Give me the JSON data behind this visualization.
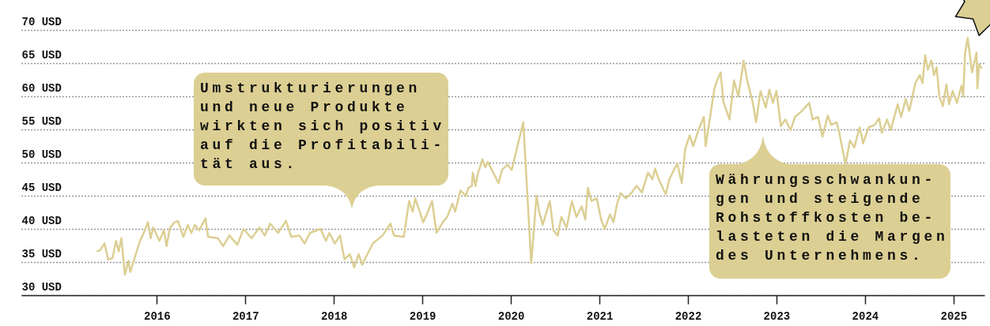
{
  "chart_data": {
    "type": "line",
    "x": [
      2015.32,
      2015.36,
      2015.41,
      2015.45,
      2015.5,
      2015.54,
      2015.57,
      2015.6,
      2015.64,
      2015.68,
      2015.7,
      2015.81,
      2015.84,
      2015.9,
      2015.93,
      2015.96,
      2016.03,
      2016.08,
      2016.11,
      2016.15,
      2016.2,
      2016.24,
      2016.3,
      2016.35,
      2016.39,
      2016.43,
      2016.48,
      2016.55,
      2016.58,
      2016.69,
      2016.75,
      2016.82,
      2016.91,
      2016.98,
      2017.07,
      2017.16,
      2017.22,
      2017.28,
      2017.37,
      2017.46,
      2017.52,
      2017.61,
      2017.67,
      2017.73,
      2017.85,
      2017.91,
      2017.95,
      2018.01,
      2018.07,
      2018.12,
      2018.18,
      2018.23,
      2018.28,
      2018.32,
      2018.44,
      2018.55,
      2018.64,
      2018.68,
      2018.79,
      2018.85,
      2018.89,
      2018.92,
      2019.01,
      2019.05,
      2019.11,
      2019.16,
      2019.23,
      2019.28,
      2019.34,
      2019.37,
      2019.43,
      2019.49,
      2019.52,
      2019.56,
      2019.57,
      2019.6,
      2019.63,
      2019.68,
      2019.71,
      2019.74,
      2019.8,
      2019.86,
      2019.9,
      2019.96,
      2020.01,
      2020.14,
      2020.23,
      2020.29,
      2020.32,
      2020.36,
      2020.44,
      2020.48,
      2020.53,
      2020.57,
      2020.63,
      2020.69,
      2020.74,
      2020.8,
      2020.84,
      2020.87,
      2020.91,
      2020.97,
      2021.02,
      2021.06,
      2021.12,
      2021.16,
      2021.2,
      2021.24,
      2021.3,
      2021.36,
      2021.42,
      2021.48,
      2021.55,
      2021.6,
      2021.63,
      2021.67,
      2021.75,
      2021.79,
      2021.88,
      2021.93,
      2021.97,
      2022.02,
      2022.06,
      2022.13,
      2022.18,
      2022.2,
      2022.3,
      2022.33,
      2022.37,
      2022.4,
      2022.47,
      2022.52,
      2022.57,
      2022.63,
      2022.67,
      2022.73,
      2022.77,
      2022.82,
      2022.88,
      2022.92,
      2022.96,
      2023.0,
      2023.05,
      2023.1,
      2023.16,
      2023.21,
      2023.28,
      2023.37,
      2023.41,
      2023.47,
      2023.52,
      2023.58,
      2023.62,
      2023.68,
      2023.71,
      2023.78,
      2023.83,
      2023.88,
      2023.94,
      2023.98,
      2024.04,
      2024.11,
      2024.16,
      2024.19,
      2024.25,
      2024.29,
      2024.37,
      2024.41,
      2024.46,
      2024.5,
      2024.57,
      2024.62,
      2024.65,
      2024.68,
      2024.71,
      2024.75,
      2024.78,
      2024.81,
      2024.84,
      2024.88,
      2024.92,
      2024.95,
      2024.99,
      2025.04,
      2025.09,
      2025.11,
      2025.13,
      2025.16,
      2025.21,
      2025.26,
      2025.27,
      2025.29,
      2025.32
    ],
    "series": [
      {
        "color": "#dccf93",
        "values": [
          36.6,
          36.8,
          37.8,
          35.4,
          35.6,
          38.2,
          36.6,
          38.6,
          33.1,
          35.2,
          33.5,
          38.2,
          39.0,
          41.0,
          38.6,
          40.2,
          38.2,
          39.8,
          37.4,
          40.2,
          41.0,
          41.2,
          38.8,
          40.6,
          39.4,
          40.6,
          39.8,
          41.6,
          38.8,
          38.6,
          37.4,
          39.0,
          37.6,
          40.0,
          38.6,
          40.2,
          39.0,
          40.8,
          39.4,
          41.2,
          38.8,
          39.0,
          37.8,
          39.4,
          40.0,
          38.2,
          39.4,
          37.8,
          39.0,
          35.4,
          36.2,
          34.2,
          36.2,
          34.6,
          37.8,
          39.0,
          40.8,
          39.0,
          38.8,
          44.2,
          42.6,
          44.6,
          41.0,
          42.2,
          44.2,
          39.4,
          41.0,
          41.8,
          43.8,
          42.6,
          45.8,
          45.0,
          46.2,
          46.5,
          48.5,
          46.5,
          48.5,
          50.5,
          49.3,
          50.1,
          48.5,
          46.9,
          48.9,
          49.7,
          48.9,
          56.1,
          34.8,
          45.0,
          42.6,
          40.6,
          44.2,
          39.8,
          39.0,
          41.8,
          40.2,
          44.2,
          41.8,
          43.4,
          41.4,
          46.2,
          44.2,
          44.6,
          41.4,
          40.0,
          42.2,
          41.0,
          43.8,
          45.4,
          44.6,
          45.4,
          46.5,
          45.5,
          48.5,
          47.5,
          49.1,
          47.5,
          45.2,
          47.5,
          49.9,
          46.9,
          52.1,
          54.1,
          52.5,
          55.3,
          56.9,
          52.5,
          61.2,
          62.4,
          63.6,
          59.2,
          56.5,
          62.4,
          60.0,
          65.4,
          62.4,
          59.2,
          56.1,
          60.8,
          58.3,
          61.0,
          59.0,
          60.8,
          55.5,
          56.5,
          54.9,
          56.9,
          57.7,
          59.0,
          56.5,
          56.9,
          53.9,
          57.1,
          55.7,
          56.1,
          54.5,
          49.7,
          53.3,
          52.3,
          55.3,
          52.9,
          55.3,
          55.7,
          56.7,
          54.5,
          56.5,
          54.9,
          58.8,
          56.9,
          59.6,
          57.8,
          62.0,
          63.2,
          62.0,
          66.2,
          64.0,
          65.4,
          63.2,
          64.4,
          60.0,
          58.5,
          61.8,
          58.8,
          60.8,
          59.0,
          61.6,
          60.0,
          66.4,
          68.8,
          63.6,
          66.6,
          61.2,
          64.8,
          64.2
        ]
      }
    ],
    "xlim": [
      2014.47,
      2025.35
    ],
    "xticks": [
      2016,
      2017,
      2018,
      2019,
      2020,
      2021,
      2022,
      2023,
      2024,
      2025
    ],
    "ylim": [
      30,
      70
    ],
    "yticks": [
      {
        "value": 30,
        "label": "30 USD"
      },
      {
        "value": 35,
        "label": "35 USD"
      },
      {
        "value": 40,
        "label": "40 USD"
      },
      {
        "value": 45,
        "label": "45 USD"
      },
      {
        "value": 50,
        "label": "50 USD"
      },
      {
        "value": 55,
        "label": "55 USD"
      },
      {
        "value": 60,
        "label": "60 USD"
      },
      {
        "value": 65,
        "label": "65 USD"
      },
      {
        "value": 70,
        "label": "70 USD"
      }
    ],
    "grid": "y",
    "annotations": [
      "Umstrukturierungen\nund neue Produkte\nwirkten sich positiv\nauf die Profitabili-\ntät aus.",
      "Währungsschwankun-\ngen und steigende\nRohstoffkosten be-\nlasteten die Margen\ndes Unternehmens."
    ]
  }
}
